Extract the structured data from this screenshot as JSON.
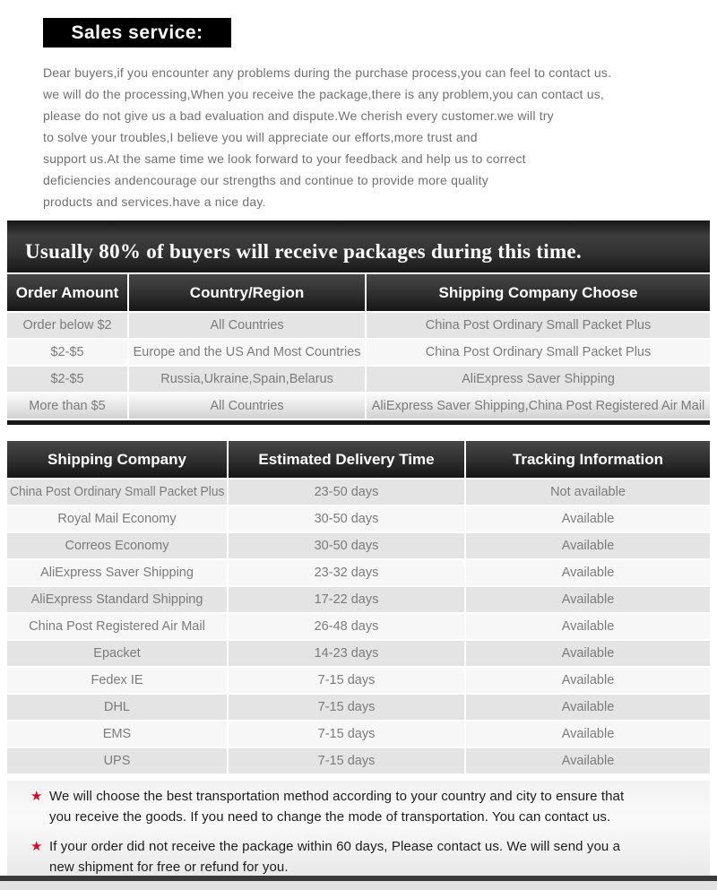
{
  "header": {
    "title": "Sales service:"
  },
  "intro": {
    "lines": [
      "Dear buyers,if you encounter any problems during the purchase process,you can feel to contact us.",
      "we will do the processing,When you receive the package,there is any problem,you can contact us,",
      "please do not give us a bad evaluation and dispute.We cherish every customer.we will try",
      "to solve your troubles,I believe you will appreciate our efforts,more trust and",
      "support us.At the same time we look forward to your feedback and help us to correct",
      "deficiencies andencourage our strengths and continue to provide more quality",
      "products and services.have a nice day."
    ]
  },
  "order_table": {
    "banner": "Usually 80% of buyers will receive packages during this time.",
    "headers": [
      "Order Amount",
      "Country/Region",
      "Shipping Company Choose"
    ],
    "rows": [
      [
        "Order below $2",
        "All Countries",
        "China Post Ordinary Small Packet Plus"
      ],
      [
        "$2-$5",
        "Europe and the US And Most Countries",
        "China Post Ordinary Small Packet Plus"
      ],
      [
        "$2-$5",
        "Russia,Ukraine,Spain,Belarus",
        "AliExpress Saver Shipping"
      ],
      [
        "More than $5",
        "All Countries",
        "AliExpress Saver Shipping,China Post Registered Air Mail"
      ]
    ]
  },
  "delivery_table": {
    "headers": [
      "Shipping Company",
      "Estimated Delivery Time",
      "Tracking Information"
    ],
    "rows": [
      [
        "China Post Ordinary Small Packet Plus",
        "23-50 days",
        "Not available"
      ],
      [
        "Royal Mail Economy",
        "30-50 days",
        "Available"
      ],
      [
        "Correos Economy",
        "30-50 days",
        "Available"
      ],
      [
        "AliExpress Saver Shipping",
        "23-32 days",
        "Available"
      ],
      [
        "AliExpress Standard Shipping",
        "17-22 days",
        "Available"
      ],
      [
        "China Post Registered Air Mail",
        "26-48 days",
        "Available"
      ],
      [
        "Epacket",
        "14-23 days",
        "Available"
      ],
      [
        "Fedex IE",
        "7-15 days",
        "Available"
      ],
      [
        "DHL",
        "7-15 days",
        "Available"
      ],
      [
        "EMS",
        "7-15 days",
        "Available"
      ],
      [
        "UPS",
        "7-15 days",
        "Available"
      ]
    ]
  },
  "notes": {
    "star": "★",
    "items": [
      {
        "lines": [
          "We will choose the best transportation method according to your country and city to ensure that",
          "you receive the goods. If you need to change the mode of transportation. You can contact us."
        ]
      },
      {
        "lines": [
          "If your order did not receive the package within 60 days, Please contact us. We will send you a",
          "new shipment for free or refund for you."
        ]
      }
    ]
  },
  "colors": {
    "title_bg": "#000000",
    "table_header_dark": "#2e2e2e",
    "row_gray": "#e4e4e4",
    "row_light": "#f7f7f7",
    "star_red": "#da0b22",
    "body_text_gray": "#6f6f6f"
  }
}
